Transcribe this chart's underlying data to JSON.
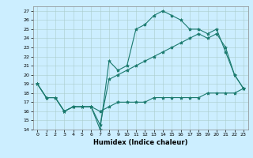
{
  "title": "",
  "xlabel": "Humidex (Indice chaleur)",
  "background_color": "#cceeff",
  "line_color": "#1a7a6e",
  "xlim": [
    -0.5,
    23.5
  ],
  "ylim": [
    14,
    27.5
  ],
  "yticks": [
    14,
    15,
    16,
    17,
    18,
    19,
    20,
    21,
    22,
    23,
    24,
    25,
    26,
    27
  ],
  "xticks": [
    0,
    1,
    2,
    3,
    4,
    5,
    6,
    7,
    8,
    9,
    10,
    11,
    12,
    13,
    14,
    15,
    16,
    17,
    18,
    19,
    20,
    21,
    22,
    23
  ],
  "series": [
    {
      "x": [
        0,
        1,
        2,
        3,
        4,
        5,
        6,
        7,
        8,
        9,
        10,
        11,
        12,
        13,
        14,
        15,
        16,
        17,
        18,
        19,
        20,
        21,
        22,
        23
      ],
      "y": [
        19,
        17.5,
        17.5,
        16,
        16.5,
        16.5,
        16.5,
        14,
        21.5,
        20.5,
        21,
        25,
        25.5,
        26.5,
        27,
        26.5,
        26,
        25,
        25,
        24.5,
        25,
        22.5,
        20,
        18.5
      ]
    },
    {
      "x": [
        0,
        1,
        2,
        3,
        4,
        5,
        6,
        7,
        8,
        9,
        10,
        11,
        12,
        13,
        14,
        15,
        16,
        17,
        18,
        19,
        20,
        21,
        22,
        23
      ],
      "y": [
        19,
        17.5,
        17.5,
        16,
        16.5,
        16.5,
        16.5,
        14.5,
        19.5,
        20,
        20.5,
        21,
        21.5,
        22,
        22.5,
        23,
        23.5,
        24,
        24.5,
        24,
        24.5,
        23,
        20,
        18.5
      ]
    },
    {
      "x": [
        0,
        1,
        2,
        3,
        4,
        5,
        6,
        7,
        8,
        9,
        10,
        11,
        12,
        13,
        14,
        15,
        16,
        17,
        18,
        19,
        20,
        21,
        22,
        23
      ],
      "y": [
        19,
        17.5,
        17.5,
        16,
        16.5,
        16.5,
        16.5,
        16,
        16.5,
        17,
        17,
        17,
        17,
        17.5,
        17.5,
        17.5,
        17.5,
        17.5,
        17.5,
        18,
        18,
        18,
        18,
        18.5
      ]
    }
  ]
}
